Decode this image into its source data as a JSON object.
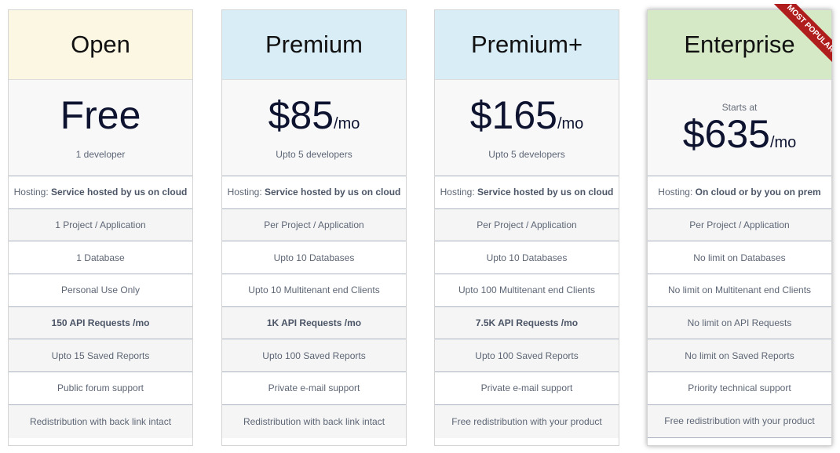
{
  "plans": [
    {
      "name": "Open",
      "header_color": "#fcf7e3",
      "starts": "",
      "price": "Free",
      "per": "",
      "sub": "1 developer",
      "hosting_label": "Hosting:",
      "hosting": "Service hosted by us on cloud",
      "features": [
        "1 Project / Application",
        "1 Database",
        "Personal Use Only",
        "150 API Requests /mo",
        "Upto 15 Saved Reports",
        "Public forum support",
        "Redistribution with back link intact"
      ]
    },
    {
      "name": "Premium",
      "header_color": "#d9edf7",
      "starts": "",
      "price": "$85",
      "per": "/mo",
      "sub": "Upto 5 developers",
      "hosting_label": "Hosting:",
      "hosting": "Service hosted by us on cloud",
      "features": [
        "Per Project / Application",
        "Upto 10 Databases",
        "Upto 10 Multitenant end Clients",
        "1K API Requests /mo",
        "Upto 100 Saved Reports",
        "Private e-mail support",
        "Redistribution with back link intact"
      ]
    },
    {
      "name": "Premium+",
      "header_color": "#d9edf7",
      "starts": "",
      "price": "$165",
      "per": "/mo",
      "sub": "Upto 5 developers",
      "hosting_label": "Hosting:",
      "hosting": "Service hosted by us on cloud",
      "features": [
        "Per Project / Application",
        "Upto 10 Databases",
        "Upto 100 Multitenant end Clients",
        "7.5K API Requests /mo",
        "Upto 100 Saved Reports",
        "Private e-mail support",
        "Free redistribution with your product"
      ]
    },
    {
      "name": "Enterprise",
      "header_color": "#d6e9c6",
      "starts": "Starts at",
      "price": "$635",
      "per": "/mo",
      "sub": "",
      "hosting_label": "Hosting:",
      "hosting": "On cloud or by you on prem",
      "features": [
        "Per Project / Application",
        "No limit on Databases",
        "No limit on Multitenant end Clients",
        "No limit on API Requests",
        "No limit on Saved Reports",
        "Priority technical support",
        "Free redistribution with your product"
      ],
      "ribbon": "MOST POPULAR",
      "ribbon_color": "#b01d1d"
    }
  ]
}
